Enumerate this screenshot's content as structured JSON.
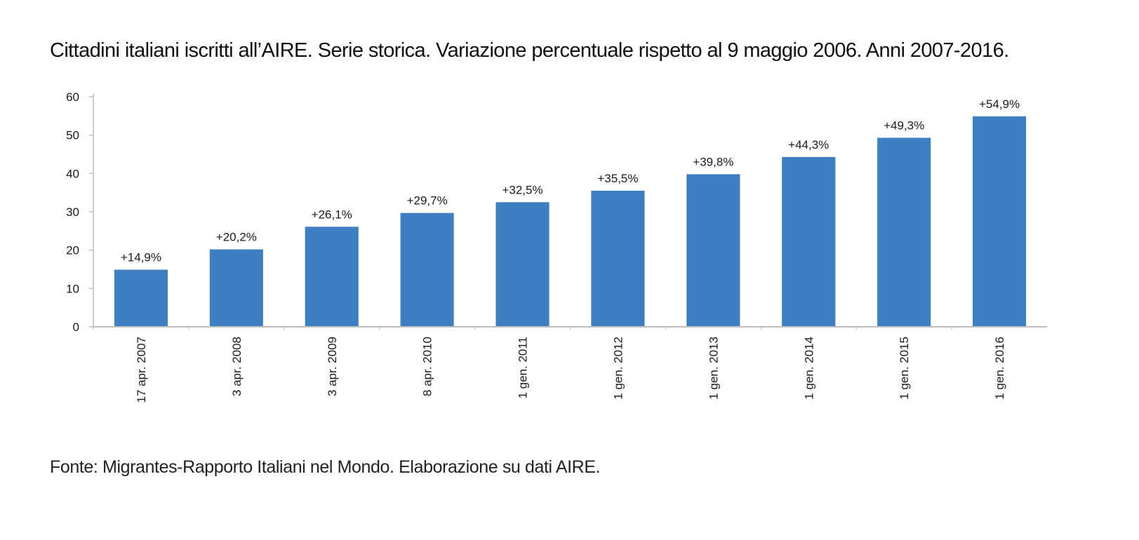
{
  "title": "Cittadini italiani iscritti all’AIRE. Serie storica. Variazione percentuale rispetto al 9 maggio 2006. Anni 2007-2016.",
  "source": "Fonte: Migrantes-Rapporto Italiani nel Mondo. Elaborazione su dati AIRE.",
  "colors": {
    "bar": "#3e7fc1",
    "axis": "#bfbfbf",
    "text": "#1a1a1a"
  },
  "chart_data": {
    "type": "bar",
    "title": "Cittadini italiani iscritti all’AIRE. Serie storica. Variazione percentuale rispetto al 9 maggio 2006. Anni 2007-2016.",
    "xlabel": "",
    "ylabel": "",
    "categories": [
      "17 apr. 2007",
      "3 apr. 2008",
      "3 apr. 2009",
      "8 apr. 2010",
      "1 gen. 2011",
      "1 gen. 2012",
      "1 gen. 2013",
      "1 gen. 2014",
      "1 gen. 2015",
      "1 gen. 2016"
    ],
    "values": [
      14.9,
      20.2,
      26.1,
      29.7,
      32.5,
      35.5,
      39.8,
      44.3,
      49.3,
      54.9
    ],
    "data_labels": [
      "+14,9%",
      "+20,2%",
      "+26,1%",
      "+29,7%",
      "+32,5%",
      "+35,5%",
      "+39,8%",
      "+44,3%",
      "+49,3%",
      "+54,9%"
    ],
    "ylim": [
      0,
      60
    ],
    "yticks": [
      0,
      10,
      20,
      30,
      40,
      50,
      60
    ],
    "grid": false,
    "legend": "none"
  }
}
